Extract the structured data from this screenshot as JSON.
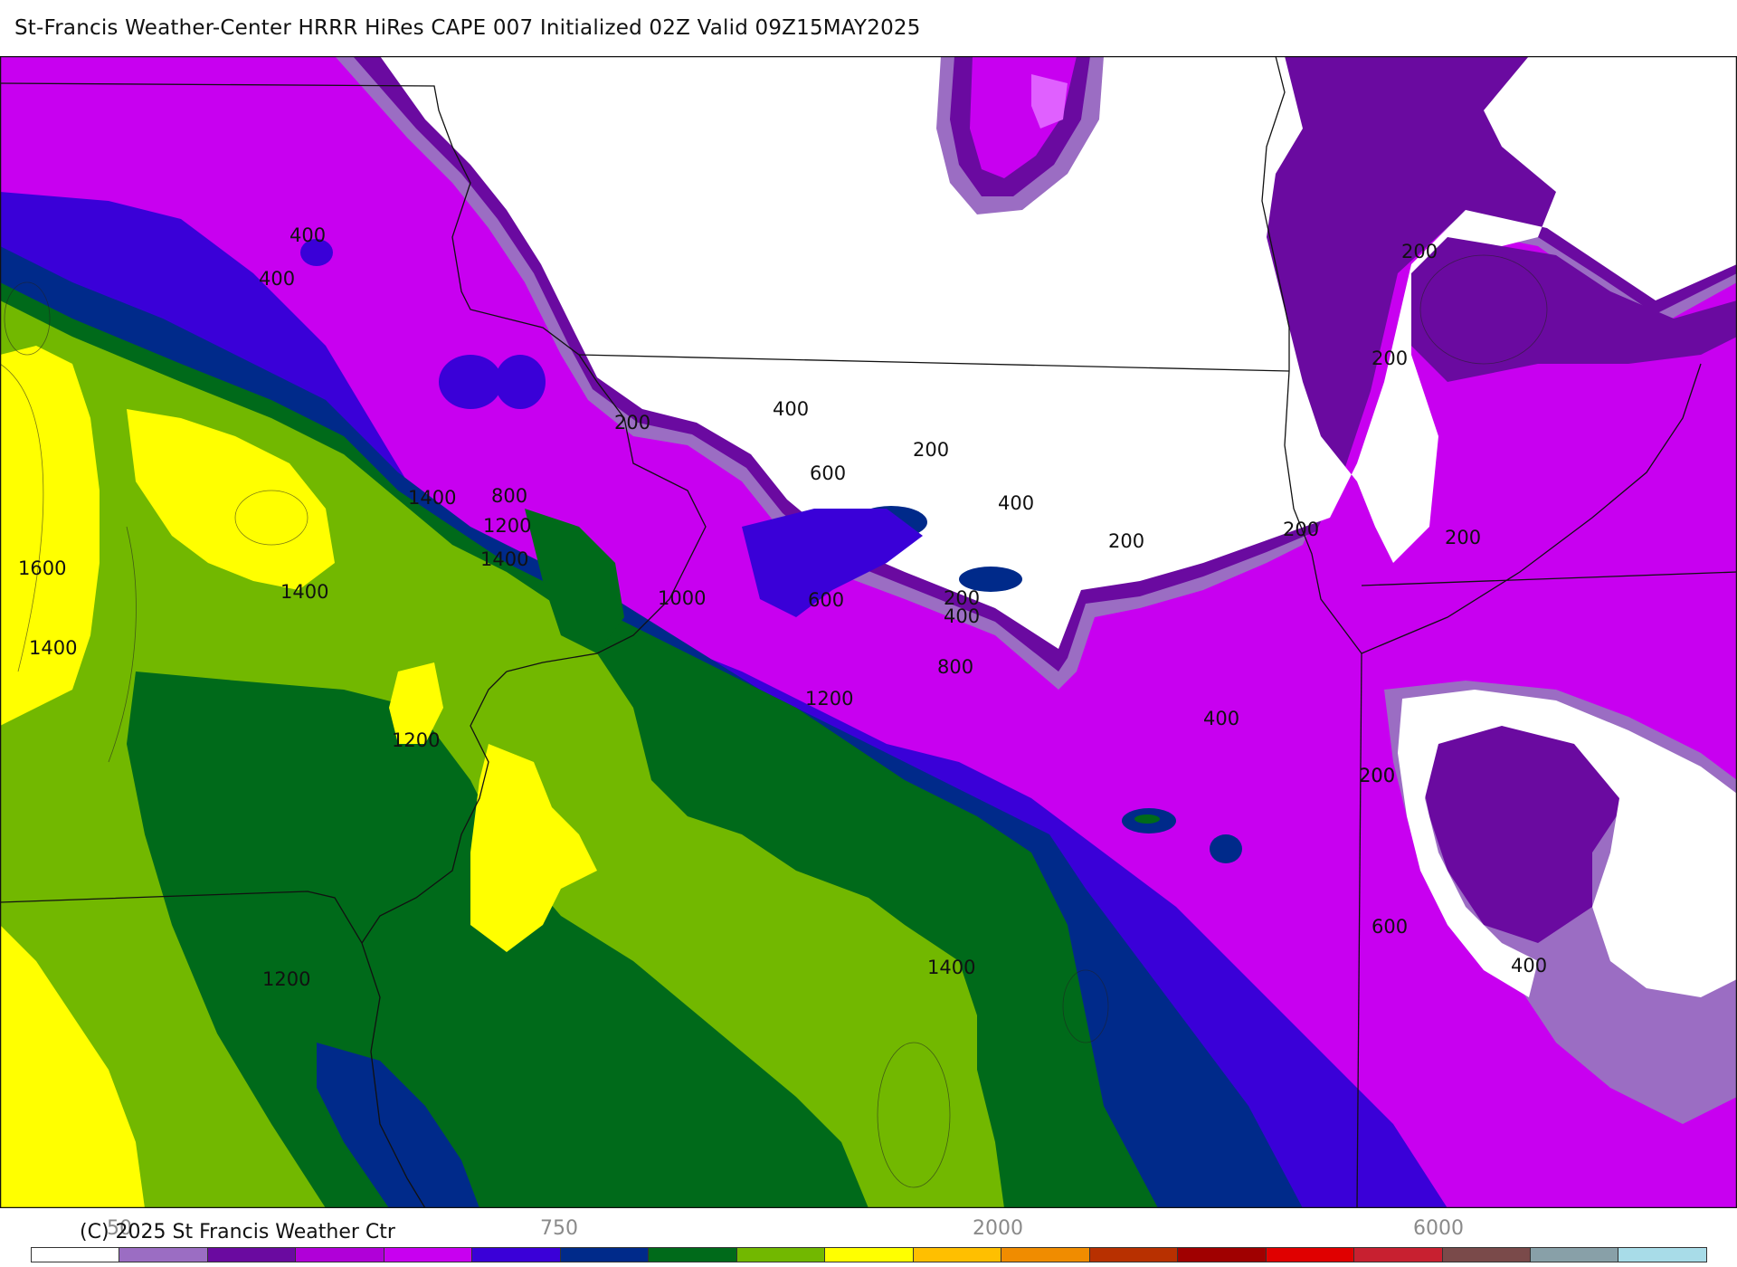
{
  "title": "St-Francis Weather-Center HRRR HiRes CAPE  007 Initialized  02Z Valid 09Z15MAY2025",
  "copyright": "(C) 2025 St Francis Weather Ctr",
  "colorbar": {
    "colors": [
      "#ffffff",
      "#9b6dc3",
      "#6a0aa0",
      "#b000d8",
      "#c800f0",
      "#3a00d8",
      "#002a8a",
      "#006a1a",
      "#72b800",
      "#ffff00",
      "#ffbf00",
      "#f08c00",
      "#b83000",
      "#a00000",
      "#e00000",
      "#c82030",
      "#7a4a4a",
      "#88a0a8",
      "#a8dce8"
    ],
    "tick_labels": [
      "50",
      "750",
      "2000",
      "6000"
    ]
  },
  "chart_data": {
    "type": "heatmap",
    "variable": "CAPE",
    "contour_labels": [
      "400",
      "400",
      "200",
      "400",
      "200",
      "600",
      "400",
      "1400",
      "800",
      "1200",
      "1400",
      "1600",
      "1400",
      "1000",
      "600",
      "200",
      "400",
      "200",
      "200",
      "200",
      "200",
      "200",
      "200",
      "1400",
      "800",
      "1200",
      "400",
      "1200",
      "200",
      "1200",
      "1400",
      "600",
      "400"
    ]
  }
}
